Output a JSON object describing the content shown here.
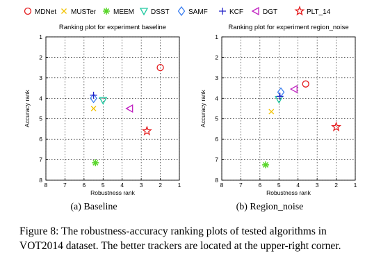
{
  "legend": [
    {
      "name": "MDNet",
      "marker": "circle",
      "color": "#e41a1c"
    },
    {
      "name": "MUSTer",
      "marker": "x",
      "color": "#f2c200"
    },
    {
      "name": "MEEM",
      "marker": "asterisk",
      "color": "#5ad62b"
    },
    {
      "name": "DSST",
      "marker": "triangle-down",
      "color": "#1ec8a0"
    },
    {
      "name": "SAMF",
      "marker": "diamond",
      "color": "#3c7ff0"
    },
    {
      "name": "KCF",
      "marker": "plus",
      "color": "#2020c8"
    },
    {
      "name": "DGT",
      "marker": "triangle-left",
      "color": "#c020c0"
    },
    {
      "name": "PLT_14",
      "marker": "star",
      "color": "#e41a1c"
    }
  ],
  "subcaptions": {
    "a": "(a) Baseline",
    "b": "(b) Region_noise"
  },
  "caption": "Figure 8: The robustness-accuracy ranking plots of tested algorithms in VOT2014 dataset. The better trackers are located at the upper-right corner.",
  "chart_data": [
    {
      "type": "scatter",
      "title": "Ranking plot for experiment baseline",
      "xlabel": "Robustness rank",
      "ylabel": "Accuracy rank",
      "xlim": [
        8,
        1
      ],
      "ylim": [
        8,
        1
      ],
      "xticks": [
        "8",
        "7",
        "6",
        "5",
        "4",
        "3",
        "2",
        "1"
      ],
      "yticks": [
        "1",
        "2",
        "3",
        "4",
        "5",
        "6",
        "7",
        "8"
      ],
      "grid": true,
      "points": [
        {
          "name": "MDNet",
          "x": 2.0,
          "y": 2.5
        },
        {
          "name": "MUSTer",
          "x": 5.5,
          "y": 4.5
        },
        {
          "name": "MEEM",
          "x": 5.4,
          "y": 7.15
        },
        {
          "name": "DSST",
          "x": 5.0,
          "y": 4.1
        },
        {
          "name": "SAMF",
          "x": 5.5,
          "y": 4.0
        },
        {
          "name": "KCF",
          "x": 5.5,
          "y": 3.85
        },
        {
          "name": "DGT",
          "x": 3.6,
          "y": 4.5
        },
        {
          "name": "PLT_14",
          "x": 2.7,
          "y": 5.6
        }
      ]
    },
    {
      "type": "scatter",
      "title": "Ranking plot for experiment region_noise",
      "xlabel": "Robustness rank",
      "ylabel": "Accuracy rank",
      "xlim": [
        8,
        1
      ],
      "ylim": [
        8,
        1
      ],
      "xticks": [
        "8",
        "7",
        "6",
        "5",
        "4",
        "3",
        "2",
        "1"
      ],
      "yticks": [
        "1",
        "2",
        "3",
        "4",
        "5",
        "6",
        "7",
        "8"
      ],
      "grid": true,
      "points": [
        {
          "name": "MDNet",
          "x": 3.6,
          "y": 3.3
        },
        {
          "name": "MUSTer",
          "x": 5.4,
          "y": 4.65
        },
        {
          "name": "MEEM",
          "x": 5.7,
          "y": 7.25
        },
        {
          "name": "DSST",
          "x": 5.0,
          "y": 4.05
        },
        {
          "name": "SAMF",
          "x": 4.9,
          "y": 3.7
        },
        {
          "name": "KCF",
          "x": 4.95,
          "y": 3.9
        },
        {
          "name": "DGT",
          "x": 4.2,
          "y": 3.55
        },
        {
          "name": "PLT_14",
          "x": 2.0,
          "y": 5.4
        }
      ]
    }
  ]
}
